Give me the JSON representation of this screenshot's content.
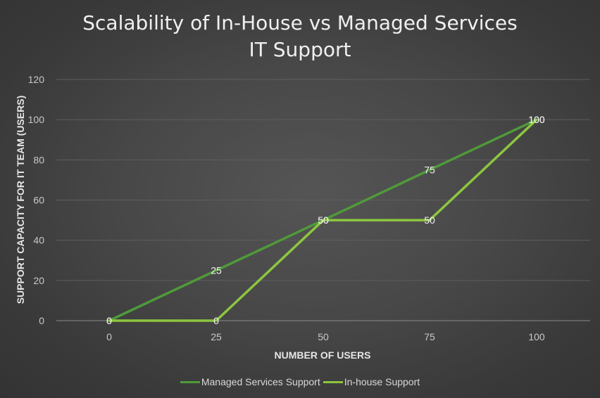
{
  "chart_data": {
    "type": "line",
    "title": [
      "Scalability of In-House vs Managed Services",
      "IT Support"
    ],
    "xlabel": "NUMBER OF USERS",
    "ylabel": "SUPPORT CAPACITY FOR IT TEAM (USERS)",
    "categories": [
      "0",
      "25",
      "50",
      "75",
      "100"
    ],
    "ylim": [
      0,
      120
    ],
    "yticks": [
      "0",
      "20",
      "40",
      "60",
      "80",
      "100",
      "120"
    ],
    "grid": true,
    "legend_position": "bottom",
    "series": [
      {
        "name": "Managed Services Support",
        "values": [
          0,
          25,
          50,
          75,
          100
        ],
        "color": "#4f9a3a"
      },
      {
        "name": "In-house Support",
        "values": [
          0,
          0,
          50,
          50,
          100
        ],
        "color": "#8dc63f"
      }
    ]
  }
}
